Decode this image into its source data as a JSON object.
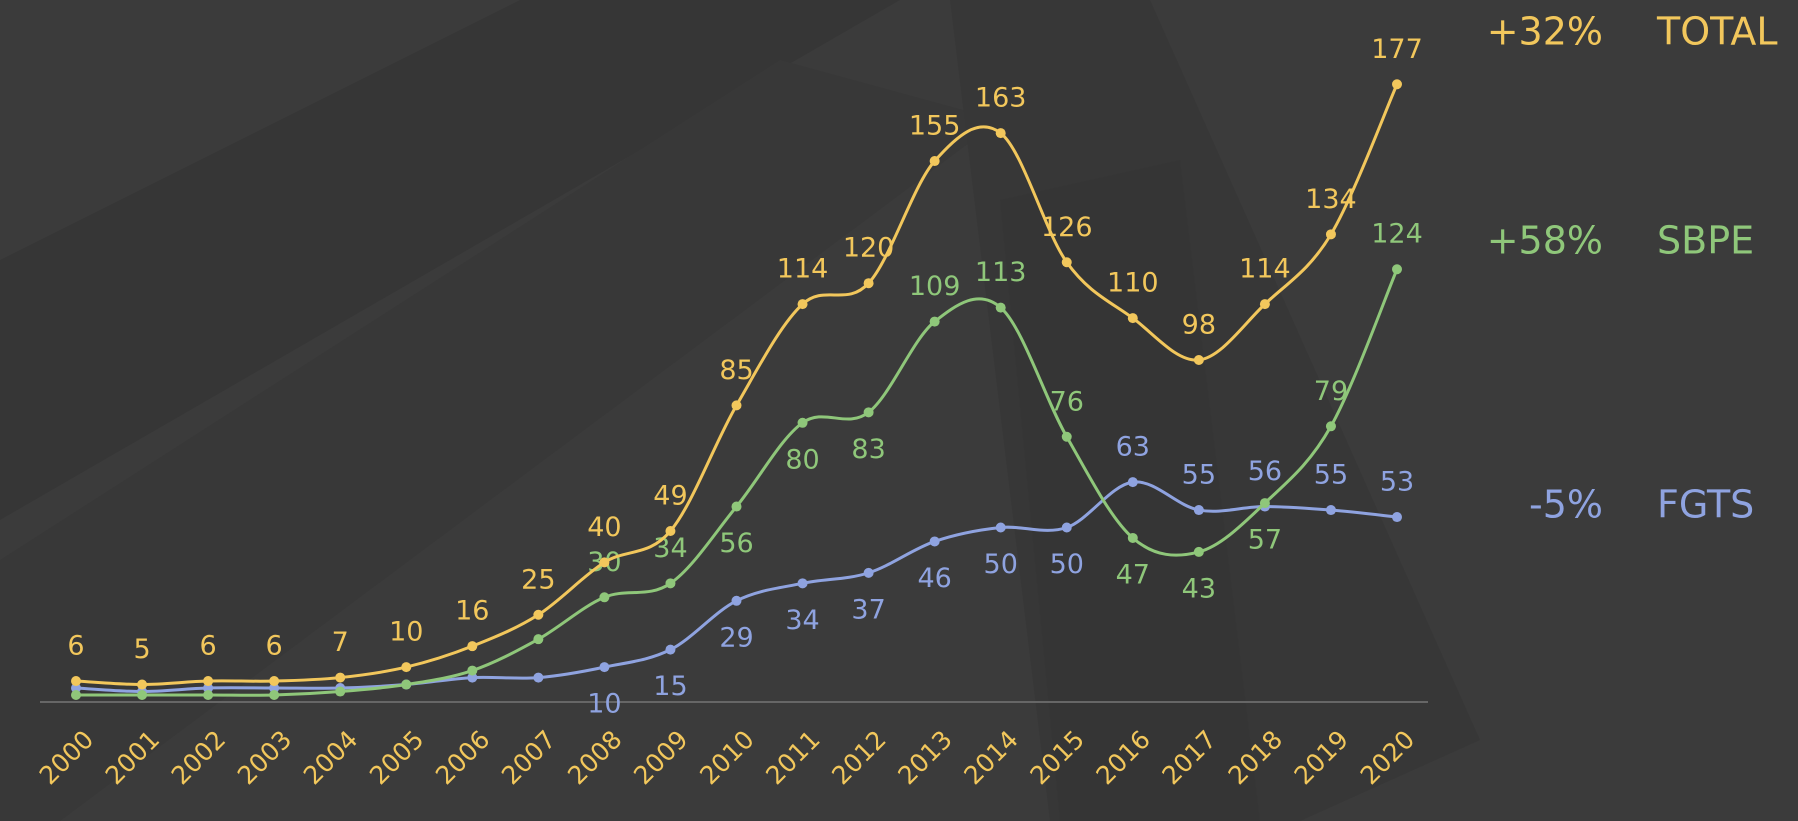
{
  "chart_data": {
    "type": "line",
    "categories": [
      "2000",
      "2001",
      "2002",
      "2003",
      "2004",
      "2005",
      "2006",
      "2007",
      "2008",
      "2009",
      "2010",
      "2011",
      "2012",
      "2013",
      "2014",
      "2015",
      "2016",
      "2017",
      "2018",
      "2019",
      "2020"
    ],
    "ylim": [
      0,
      180
    ],
    "series": [
      {
        "name": "TOTAL",
        "change": "+32%",
        "color": "#f2c75c",
        "values": [
          6,
          5,
          6,
          6,
          7,
          10,
          16,
          25,
          40,
          49,
          85,
          114,
          120,
          155,
          163,
          126,
          110,
          98,
          114,
          134,
          177
        ],
        "value_labels": [
          "6",
          "5",
          "6",
          "6",
          "7",
          "10",
          "16",
          "25",
          "40",
          "49",
          "85",
          "114",
          "120",
          "155",
          "163",
          "126",
          "110",
          "98",
          "114",
          "134",
          "177"
        ]
      },
      {
        "name": "SBPE",
        "change": "+58%",
        "color": "#8fc77a",
        "values": [
          2,
          2,
          2,
          2,
          3,
          5,
          9,
          18,
          30,
          34,
          56,
          80,
          83,
          109,
          113,
          76,
          47,
          43,
          57,
          79,
          124
        ],
        "value_labels": [
          null,
          null,
          null,
          null,
          null,
          null,
          null,
          null,
          "30",
          "34",
          "56",
          "80",
          "83",
          "109",
          "113",
          "76",
          "47",
          "43",
          "57",
          "79",
          "124"
        ]
      },
      {
        "name": "FGTS",
        "change": "-5%",
        "color": "#8fa3e0",
        "values": [
          4,
          3,
          4,
          4,
          4,
          5,
          7,
          7,
          10,
          15,
          29,
          34,
          37,
          46,
          50,
          50,
          63,
          55,
          56,
          55,
          53
        ],
        "value_labels": [
          null,
          null,
          null,
          null,
          null,
          null,
          null,
          null,
          "10",
          "15",
          "29",
          "34",
          "37",
          "46",
          "50",
          "50",
          "63",
          "55",
          "56",
          "55",
          "53"
        ]
      }
    ]
  }
}
